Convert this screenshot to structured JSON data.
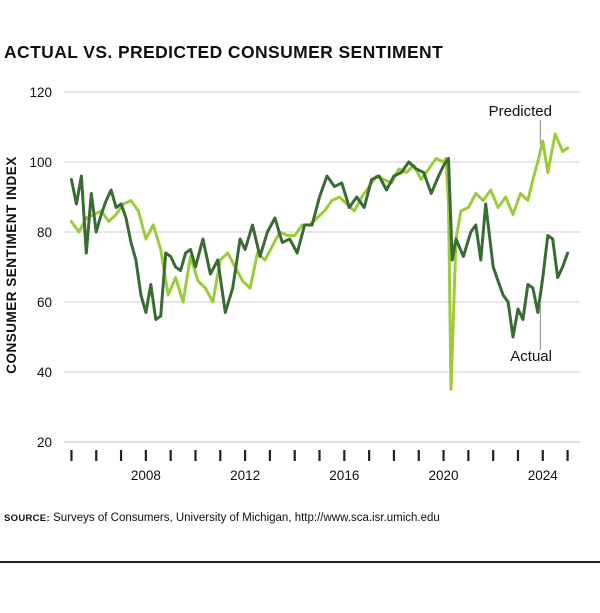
{
  "title": "ACTUAL VS. PREDICTED CONSUMER SENTIMENT",
  "source": {
    "label": "SOURCE:",
    "text": "Surveys of Consumers, University of Michigan, http://www.sca.isr.umich.edu"
  },
  "chart_data": {
    "type": "line",
    "title": "ACTUAL VS. PREDICTED CONSUMER SENTIMENT",
    "xlabel": "",
    "ylabel": "CONSUMER SENTIMENT INDEX",
    "ylim": [
      20,
      120
    ],
    "xlim": [
      2004.7,
      2025.5
    ],
    "yticks": [
      20,
      40,
      60,
      80,
      100,
      120
    ],
    "xtick_labels": [
      "2008",
      "2012",
      "2016",
      "2020",
      "2024"
    ],
    "xtick_label_years": [
      2008,
      2012,
      2016,
      2020,
      2024
    ],
    "xtick_minor_years": [
      2005,
      2006,
      2007,
      2008,
      2009,
      2010,
      2011,
      2012,
      2013,
      2014,
      2015,
      2016,
      2017,
      2018,
      2019,
      2020,
      2021,
      2022,
      2023,
      2024,
      2025
    ],
    "grid": "horizontal",
    "colors": {
      "Predicted": "#9ccc3c",
      "Actual": "#3a6b35",
      "grid": "#d0d0d0",
      "axis": "#222222"
    },
    "series": [
      {
        "name": "Predicted",
        "x": [
          2005.0,
          2005.3,
          2005.6,
          2005.9,
          2006.2,
          2006.5,
          2006.8,
          2007.1,
          2007.4,
          2007.7,
          2008.0,
          2008.3,
          2008.6,
          2008.9,
          2009.2,
          2009.5,
          2009.8,
          2010.1,
          2010.4,
          2010.7,
          2011.0,
          2011.3,
          2011.6,
          2011.9,
          2012.2,
          2012.5,
          2012.8,
          2013.1,
          2013.4,
          2013.7,
          2014.0,
          2014.3,
          2014.6,
          2014.9,
          2015.2,
          2015.5,
          2015.8,
          2016.1,
          2016.4,
          2016.7,
          2017.0,
          2017.3,
          2017.6,
          2017.9,
          2018.2,
          2018.5,
          2018.8,
          2019.1,
          2019.4,
          2019.7,
          2020.0,
          2020.1,
          2020.2,
          2020.3,
          2020.5,
          2020.7,
          2021.0,
          2021.3,
          2021.6,
          2021.9,
          2022.2,
          2022.5,
          2022.8,
          2023.1,
          2023.4,
          2023.6,
          2023.8,
          2024.0,
          2024.2,
          2024.5,
          2024.8,
          2025.0
        ],
        "values": [
          83,
          80,
          84,
          85,
          86,
          83,
          85,
          88,
          89,
          86,
          78,
          82,
          75,
          62,
          67,
          60,
          73,
          66,
          64,
          60,
          72,
          74,
          70,
          66,
          64,
          74,
          72,
          76,
          80,
          79,
          79,
          82,
          82,
          84,
          86,
          89,
          90,
          88,
          86,
          90,
          93,
          96,
          95,
          94,
          98,
          97,
          99,
          95,
          98,
          101,
          100,
          101,
          88,
          35,
          78,
          86,
          87,
          91,
          89,
          92,
          87,
          90,
          85,
          91,
          89,
          95,
          100,
          106,
          97,
          108,
          103,
          104
        ],
        "label": {
          "text": "Predicted",
          "at_year": 2023.9,
          "at_value": 105
        }
      },
      {
        "name": "Actual",
        "x": [
          2005.0,
          2005.2,
          2005.4,
          2005.6,
          2005.8,
          2006.0,
          2006.2,
          2006.4,
          2006.6,
          2006.8,
          2007.0,
          2007.2,
          2007.4,
          2007.6,
          2007.8,
          2008.0,
          2008.2,
          2008.4,
          2008.6,
          2008.8,
          2009.0,
          2009.2,
          2009.4,
          2009.6,
          2009.8,
          2010.0,
          2010.3,
          2010.6,
          2010.9,
          2011.2,
          2011.5,
          2011.8,
          2012.0,
          2012.3,
          2012.6,
          2012.9,
          2013.2,
          2013.5,
          2013.8,
          2014.1,
          2014.4,
          2014.7,
          2015.0,
          2015.3,
          2015.6,
          2015.9,
          2016.2,
          2016.5,
          2016.8,
          2017.1,
          2017.4,
          2017.7,
          2018.0,
          2018.3,
          2018.6,
          2018.9,
          2019.2,
          2019.5,
          2019.8,
          2020.0,
          2020.2,
          2020.35,
          2020.5,
          2020.8,
          2021.1,
          2021.3,
          2021.5,
          2021.7,
          2022.0,
          2022.2,
          2022.4,
          2022.6,
          2022.8,
          2023.0,
          2023.2,
          2023.4,
          2023.6,
          2023.8,
          2024.0,
          2024.2,
          2024.4,
          2024.6,
          2024.8,
          2025.0
        ],
        "values": [
          95,
          88,
          96,
          74,
          91,
          80,
          85,
          89,
          92,
          87,
          88,
          84,
          77,
          72,
          62,
          57,
          65,
          55,
          56,
          74,
          73,
          70,
          69,
          74,
          75,
          70,
          78,
          68,
          72,
          57,
          64,
          78,
          75,
          82,
          73,
          80,
          84,
          77,
          78,
          74,
          82,
          82,
          90,
          96,
          93,
          94,
          87,
          90,
          87,
          95,
          96,
          92,
          96,
          97,
          100,
          98,
          97,
          91,
          96,
          99,
          101,
          72,
          78,
          73,
          80,
          82,
          72,
          88,
          70,
          66,
          62,
          60,
          50,
          58,
          55,
          65,
          64,
          57,
          67,
          79,
          78,
          67,
          70,
          74
        ],
        "label": {
          "text": "Actual",
          "at_year": 2023.9,
          "at_value": 60
        }
      }
    ]
  }
}
